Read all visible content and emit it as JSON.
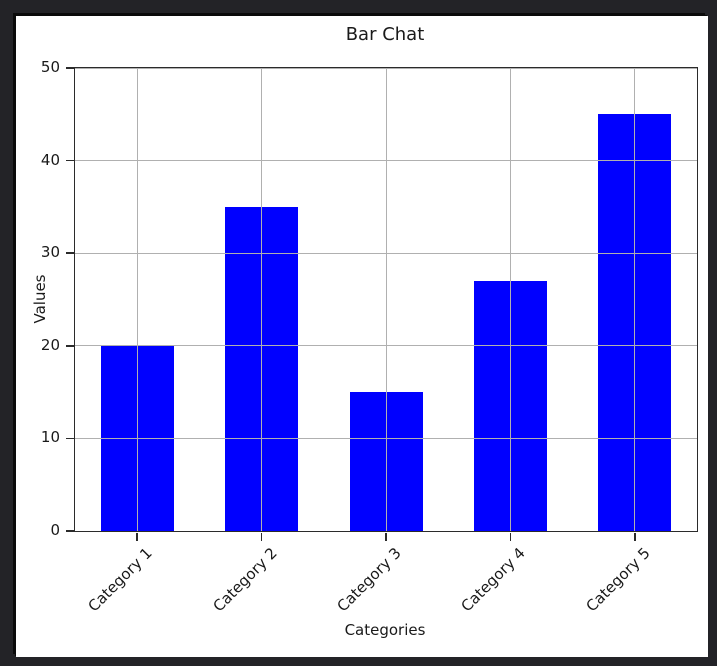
{
  "chart_data": {
    "type": "bar",
    "title": "Bar Chat",
    "xlabel": "Categories",
    "ylabel": "Values",
    "categories": [
      "Category 1",
      "Category 2",
      "Category 3",
      "Category 4",
      "Category 5"
    ],
    "values": [
      20,
      35,
      15,
      27,
      45
    ],
    "ylim": [
      0,
      50
    ],
    "yticks": [
      0,
      10,
      20,
      30,
      40,
      50
    ],
    "grid": "on",
    "legend": "none",
    "bar_color": "#0000ff",
    "grid_color": "#b0b0b0",
    "spine_color": "#2b2b2b",
    "text_color": "#1a1a1a",
    "figure_background": "#ffffff",
    "frame_background": "#232327"
  }
}
